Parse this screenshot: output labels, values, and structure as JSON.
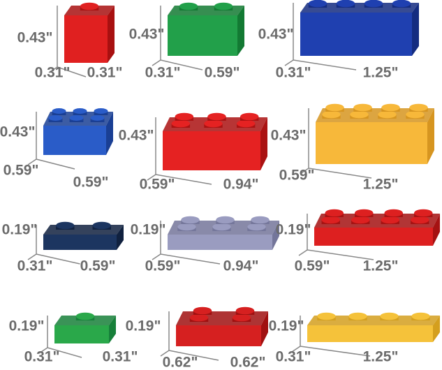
{
  "bricks": [
    {
      "height": "0.43\"",
      "depth": "0.31\"",
      "width": "0.31\""
    },
    {
      "height": "0.43\"",
      "depth": "0.31\"",
      "width": "0.59\""
    },
    {
      "height": "0.43\"",
      "depth": "0.31\"",
      "width": "1.25\""
    },
    {
      "height": "0.43\"",
      "depth": "0.59\"",
      "width": "0.59\""
    },
    {
      "height": "0.43\"",
      "depth": "0.59\"",
      "width": "0.94\""
    },
    {
      "height": "0.43\"",
      "depth": "0.59\"",
      "width": "1.25\""
    },
    {
      "height": "0.19\"",
      "depth": "0.31\"",
      "width": "0.59\""
    },
    {
      "height": "0.19\"",
      "depth": "0.59\"",
      "width": "0.94\""
    },
    {
      "height": "0.19\"",
      "depth": "0.59\"",
      "width": "1.25\""
    },
    {
      "height": "0.19\"",
      "depth": "0.31\"",
      "width": "0.31\""
    },
    {
      "height": "0.19\"",
      "depth": "0.62\"",
      "width": "0.62\""
    },
    {
      "height": "0.19\"",
      "depth": "0.31\"",
      "width": "1.25\""
    }
  ]
}
